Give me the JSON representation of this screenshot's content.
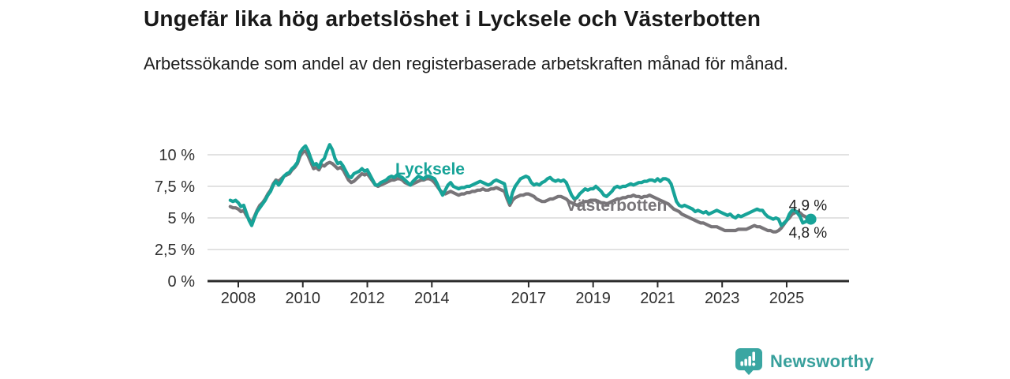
{
  "header": {
    "title": "Ungefär lika hög arbetslöshet i Lycksele och Västerbotten",
    "subtitle": "Arbetssökande som andel av den registerbaserade arbetskraften månad för månad."
  },
  "chart_data": {
    "type": "line",
    "title": "Ungefär lika hög arbetslöshet i Lycksele och Västerbotten",
    "subtitle": "Arbetssökande som andel av den registerbaserade arbetskraften månad för månad.",
    "grid": true,
    "legend_position": "inline-labels",
    "colors": {
      "grid": "#d9d9d9",
      "axis": "#2b2b2b",
      "axis_text": "#2f2f2f",
      "end_label_text": "#1f1f1f"
    },
    "x_axis": {
      "min_year": 2007.05,
      "max_year": 2026.9,
      "tick_years": [
        2008,
        2010,
        2012,
        2014,
        2017,
        2019,
        2021,
        2023,
        2025
      ]
    },
    "y_axis": {
      "min": 0,
      "max": 10,
      "unit": "%",
      "ticks": [
        {
          "value": 0,
          "label": "0 %"
        },
        {
          "value": 2.5,
          "label": "2,5 %"
        },
        {
          "value": 5,
          "label": "5 %"
        },
        {
          "value": 7.5,
          "label": "7,5 %"
        },
        {
          "value": 10,
          "label": "10 %"
        }
      ]
    },
    "series": [
      {
        "name": "Västerbotten",
        "color": "#787579",
        "end_label": "4,8 %",
        "end_dot": false,
        "start_year": 2007.75,
        "step_years": 0.0833333,
        "values": [
          5.9,
          5.8,
          5.8,
          5.7,
          5.5,
          5.6,
          5.2,
          4.9,
          4.6,
          5.1,
          5.6,
          6.0,
          6.2,
          6.5,
          6.9,
          7.2,
          7.7,
          8.0,
          7.9,
          8.1,
          8.3,
          8.4,
          8.5,
          8.8,
          9.0,
          9.3,
          9.9,
          10.2,
          10.3,
          9.9,
          9.4,
          8.9,
          9.0,
          8.8,
          9.2,
          9.1,
          9.3,
          9.4,
          9.3,
          9.1,
          8.9,
          9.0,
          8.8,
          8.4,
          8.0,
          7.8,
          7.9,
          8.1,
          8.3,
          8.5,
          8.4,
          8.5,
          8.2,
          7.9,
          7.6,
          7.5,
          7.6,
          7.7,
          7.8,
          7.9,
          8.0,
          8.0,
          8.1,
          8.1,
          8.0,
          7.8,
          7.7,
          7.6,
          7.7,
          7.8,
          7.9,
          8.0,
          8.0,
          8.1,
          8.1,
          8.0,
          7.8,
          7.5,
          7.2,
          7.0,
          6.9,
          7.0,
          7.1,
          7.0,
          6.9,
          6.8,
          6.9,
          6.9,
          7.0,
          7.0,
          7.1,
          7.1,
          7.2,
          7.2,
          7.3,
          7.2,
          7.2,
          7.3,
          7.3,
          7.4,
          7.3,
          7.2,
          7.1,
          6.5,
          6.0,
          6.4,
          6.6,
          6.7,
          6.8,
          6.8,
          6.9,
          6.9,
          6.8,
          6.7,
          6.5,
          6.4,
          6.3,
          6.3,
          6.4,
          6.5,
          6.5,
          6.6,
          6.7,
          6.7,
          6.6,
          6.5,
          6.3,
          6.2,
          6.1,
          6.0,
          6.1,
          6.2,
          6.3,
          6.3,
          6.4,
          6.4,
          6.4,
          6.3,
          6.2,
          6.2,
          6.1,
          6.2,
          6.3,
          6.4,
          6.5,
          6.5,
          6.6,
          6.6,
          6.7,
          6.7,
          6.8,
          6.7,
          6.7,
          6.6,
          6.7,
          6.7,
          6.8,
          6.7,
          6.6,
          6.5,
          6.4,
          6.3,
          6.2,
          6.1,
          5.9,
          5.7,
          5.6,
          5.5,
          5.3,
          5.2,
          5.1,
          5.0,
          4.9,
          4.8,
          4.7,
          4.6,
          4.6,
          4.5,
          4.4,
          4.3,
          4.3,
          4.3,
          4.2,
          4.1,
          4.0,
          4.0,
          4.0,
          4.0,
          4.0,
          4.1,
          4.1,
          4.1,
          4.1,
          4.2,
          4.3,
          4.4,
          4.3,
          4.3,
          4.2,
          4.1,
          4.0,
          4.0,
          3.9,
          3.9,
          4.0,
          4.2,
          4.5,
          4.8,
          5.0,
          5.3,
          5.4,
          5.5,
          5.4,
          5.2,
          5.1,
          4.9,
          4.8
        ]
      },
      {
        "name": "Lycksele",
        "color": "#17a398",
        "end_label": "4,9 %",
        "end_dot": true,
        "start_year": 2007.75,
        "step_years": 0.0833333,
        "values": [
          6.4,
          6.3,
          6.4,
          6.2,
          5.9,
          6.0,
          5.4,
          4.8,
          4.4,
          5.0,
          5.5,
          5.8,
          6.1,
          6.4,
          6.8,
          7.1,
          7.6,
          7.9,
          7.6,
          7.9,
          8.3,
          8.5,
          8.6,
          8.9,
          9.1,
          9.4,
          10.2,
          10.5,
          10.7,
          10.3,
          9.7,
          9.2,
          9.3,
          9.0,
          9.5,
          9.7,
          10.3,
          10.8,
          10.4,
          9.7,
          9.3,
          9.4,
          9.1,
          8.7,
          8.3,
          8.2,
          8.5,
          8.6,
          8.7,
          8.9,
          8.7,
          8.8,
          8.4,
          8.0,
          7.6,
          7.6,
          7.8,
          7.9,
          8.0,
          8.2,
          8.3,
          8.2,
          8.4,
          8.3,
          8.2,
          8.0,
          7.8,
          7.6,
          7.9,
          8.1,
          8.3,
          8.2,
          8.1,
          8.3,
          8.3,
          8.2,
          8.1,
          7.7,
          7.2,
          6.8,
          7.2,
          7.6,
          7.8,
          7.5,
          7.4,
          7.3,
          7.4,
          7.4,
          7.5,
          7.5,
          7.6,
          7.7,
          7.8,
          7.9,
          7.8,
          7.7,
          7.6,
          7.7,
          7.9,
          8.0,
          7.9,
          7.8,
          7.7,
          6.8,
          6.2,
          7.0,
          7.5,
          7.8,
          8.1,
          8.2,
          8.3,
          8.2,
          7.8,
          7.6,
          7.7,
          7.6,
          7.8,
          7.9,
          8.1,
          8.2,
          8.0,
          7.9,
          8.0,
          7.9,
          8.0,
          7.8,
          7.3,
          6.8,
          6.5,
          6.6,
          6.9,
          7.1,
          7.3,
          7.2,
          7.3,
          7.3,
          7.5,
          7.3,
          7.1,
          6.8,
          6.7,
          6.9,
          7.1,
          7.4,
          7.5,
          7.4,
          7.5,
          7.5,
          7.6,
          7.7,
          7.6,
          7.7,
          7.8,
          7.8,
          7.9,
          7.9,
          8.0,
          8.0,
          7.9,
          8.1,
          7.9,
          8.1,
          8.1,
          8.0,
          7.7,
          7.0,
          6.3,
          6.0,
          5.9,
          6.0,
          5.9,
          5.8,
          5.7,
          5.5,
          5.6,
          5.5,
          5.4,
          5.5,
          5.3,
          5.4,
          5.5,
          5.6,
          5.5,
          5.4,
          5.3,
          5.2,
          5.3,
          5.1,
          5.0,
          5.2,
          5.1,
          5.2,
          5.3,
          5.4,
          5.5,
          5.6,
          5.7,
          5.6,
          5.6,
          5.3,
          5.1,
          5.0,
          4.9,
          5.0,
          4.9,
          4.4,
          4.6,
          4.8,
          5.3,
          5.6,
          5.6,
          5.4,
          5.1,
          4.6,
          4.7,
          4.8,
          4.9
        ]
      }
    ]
  },
  "footer": {
    "brand": "Newsworthy",
    "logo_icon": "bar-chart-badge-icon"
  }
}
